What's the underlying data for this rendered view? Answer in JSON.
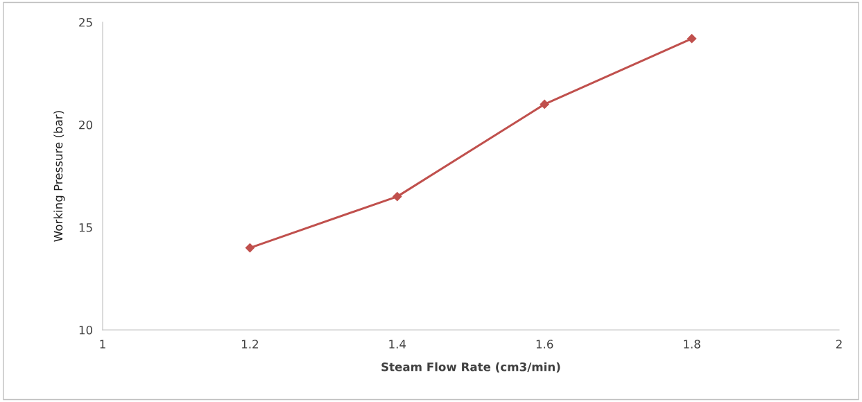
{
  "chart_data": {
    "type": "line",
    "xlabel": "Steam Flow Rate (cm3/min)",
    "ylabel": "Working Pressure (bar)",
    "x": [
      1.2,
      1.4,
      1.6,
      1.8
    ],
    "series": [
      {
        "color": "#c0504d",
        "values": [
          14.0,
          16.5,
          21.0,
          24.2
        ]
      }
    ],
    "xlim": [
      1,
      2
    ],
    "xticks": [
      1,
      {
        "value": 1.2,
        "label": "1.2"
      },
      {
        "value": 1.4,
        "label": "1.4"
      },
      {
        "value": 1.6,
        "label": "1.6"
      },
      {
        "value": 1.8,
        "label": "1.8"
      },
      2
    ],
    "ylim": [
      10,
      25
    ],
    "yticks": [
      10,
      15,
      20,
      25
    ],
    "grid": false,
    "marker": "diamond",
    "line_style": "solid"
  }
}
